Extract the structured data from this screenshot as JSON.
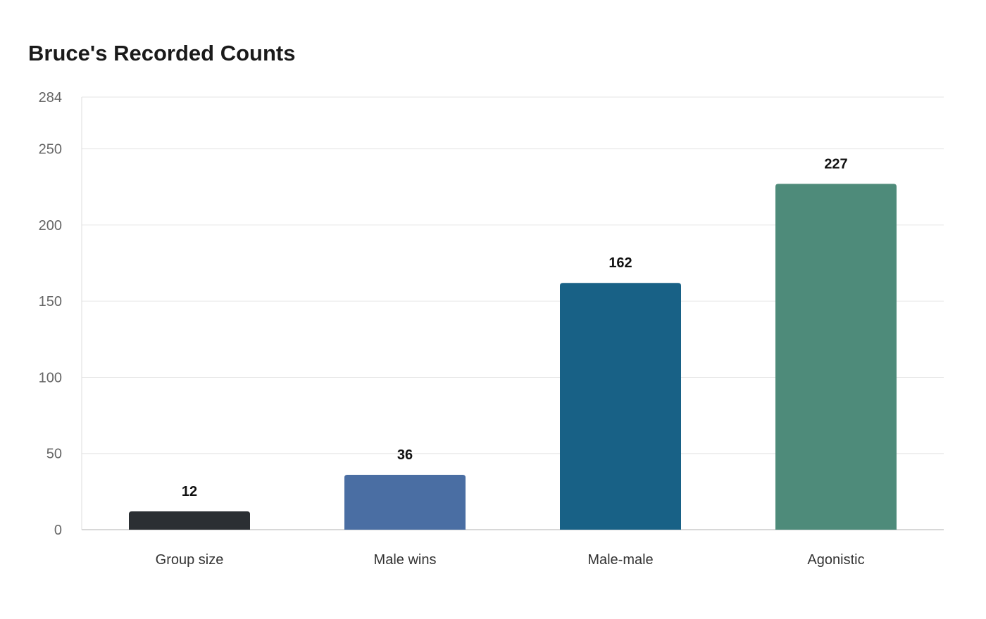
{
  "chart_data": {
    "type": "bar",
    "title": "Bruce's Recorded Counts",
    "xlabel": "",
    "ylabel": "",
    "categories": [
      "Group size",
      "Male wins",
      "Male-male",
      "Agonistic"
    ],
    "values": [
      12,
      36,
      162,
      227
    ],
    "ylim": [
      0,
      284
    ],
    "yticks": [
      0,
      50,
      100,
      150,
      200,
      250,
      284
    ],
    "grid": true,
    "legend": "none",
    "colors": [
      "#2b2f33",
      "#4a6ea3",
      "#186186",
      "#4e8b7a"
    ],
    "data_labels": true
  }
}
